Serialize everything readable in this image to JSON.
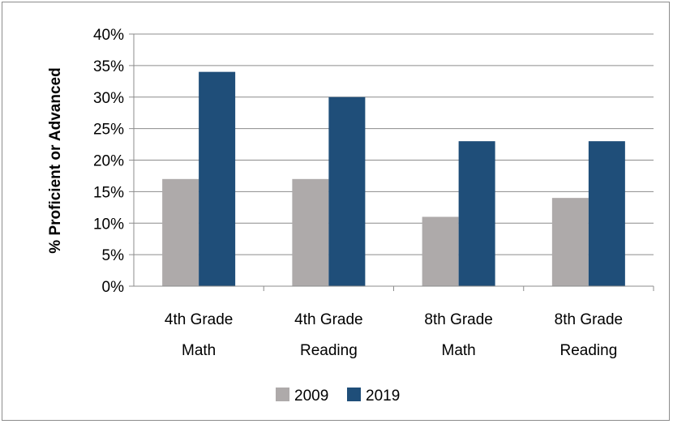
{
  "chart_data": {
    "type": "bar",
    "categories": [
      [
        "4th Grade",
        "Math"
      ],
      [
        "4th Grade",
        "Reading"
      ],
      [
        "8th Grade",
        "Math"
      ],
      [
        "8th Grade",
        "Reading"
      ]
    ],
    "series": [
      {
        "name": "2009",
        "values": [
          17,
          17,
          11,
          14
        ],
        "color": "#aeaaaa"
      },
      {
        "name": "2019",
        "values": [
          34,
          30,
          23,
          23
        ],
        "color": "#1f4e79"
      }
    ],
    "title": "",
    "xlabel": "",
    "ylabel": "% Proficient or Advanced",
    "ylim": [
      0,
      40
    ],
    "yticks": [
      "0%",
      "5%",
      "10%",
      "15%",
      "20%",
      "25%",
      "30%",
      "35%",
      "40%"
    ],
    "grid": true,
    "legend_position": "bottom"
  }
}
